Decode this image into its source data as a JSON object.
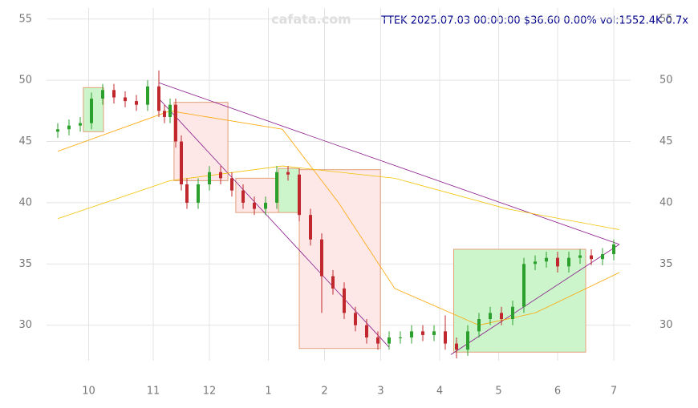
{
  "chart_data": {
    "type": "candlestick",
    "title": "TTEK 2025.07.03 00:00:00 $36.60 0.00% vol:1552.4K 0.7x",
    "watermark": "cafata.com",
    "xlim": [
      -4,
      204
    ],
    "xticks": [
      {
        "value": 11,
        "label": "10"
      },
      {
        "value": 34,
        "label": "11"
      },
      {
        "value": 54,
        "label": "12"
      },
      {
        "value": 75,
        "label": "1"
      },
      {
        "value": 95,
        "label": "2"
      },
      {
        "value": 115,
        "label": "3"
      },
      {
        "value": 136,
        "label": "4"
      },
      {
        "value": 157,
        "label": "5"
      },
      {
        "value": 178,
        "label": "6"
      },
      {
        "value": 198,
        "label": "7"
      }
    ],
    "ylim": [
      27.1,
      55.9
    ],
    "yticks": [
      30,
      35,
      40,
      45,
      50,
      55
    ],
    "grid": true,
    "up_color": "#2ca02c",
    "down_color": "#c0282d",
    "x": [
      0,
      4,
      8,
      12,
      16,
      20,
      24,
      28,
      32,
      36,
      38,
      40,
      42,
      44,
      46,
      50,
      54,
      58,
      62,
      66,
      70,
      74,
      78,
      82,
      86,
      90,
      94,
      98,
      102,
      106,
      110,
      114,
      118,
      122,
      126,
      130,
      134,
      138,
      142,
      146,
      150,
      154,
      158,
      162,
      166,
      170,
      174,
      178,
      182,
      186,
      190,
      194,
      198
    ],
    "open": [
      45.8,
      46,
      46.3,
      46.5,
      48.5,
      49.2,
      48.6,
      48.3,
      48,
      49.5,
      47.5,
      47,
      48,
      45,
      41.5,
      40,
      41.5,
      42.5,
      42,
      41,
      40,
      39.5,
      40,
      42.5,
      42.3,
      39,
      37,
      34,
      33,
      31,
      30,
      29,
      28.5,
      29,
      29,
      29.5,
      29.2,
      29.5,
      28.5,
      28,
      29.5,
      30.5,
      31,
      30.5,
      31.5,
      35,
      35.2,
      35.5,
      34.8,
      35.5,
      35.7,
      35.4,
      35.8
    ],
    "high": [
      46.5,
      46.8,
      47,
      49,
      49.7,
      49.7,
      49.1,
      48.8,
      50,
      50.8,
      48,
      48.5,
      48.5,
      45.5,
      42,
      42,
      43,
      43,
      42.5,
      41.5,
      40.5,
      40.5,
      43,
      43,
      42.8,
      39.5,
      37.5,
      34.5,
      33.5,
      31.5,
      30.5,
      29.5,
      29.5,
      29.5,
      30,
      30,
      30,
      30.8,
      29,
      30,
      31,
      31.5,
      31.5,
      32,
      35.5,
      35.7,
      36,
      36,
      36,
      36.2,
      36.2,
      36.3,
      37
    ],
    "low": [
      45.3,
      45.5,
      45.8,
      46,
      48,
      48.1,
      47.8,
      47.5,
      47.5,
      47,
      46.5,
      46.5,
      44.5,
      41,
      39.5,
      39.5,
      41,
      41.5,
      40.5,
      39.5,
      39,
      39,
      39.5,
      41.8,
      38.5,
      36.5,
      31,
      32.5,
      30.5,
      29.5,
      28.5,
      28,
      28,
      28.5,
      28.5,
      28.7,
      28.7,
      28,
      27.3,
      27.5,
      29,
      30,
      30,
      30,
      31,
      34.5,
      34.7,
      34.3,
      34.3,
      35,
      34.9,
      34.9,
      35.3
    ],
    "close": [
      46,
      46.3,
      46.5,
      48.5,
      49.2,
      48.6,
      48.3,
      48,
      49.5,
      47.5,
      47,
      48,
      45,
      41.5,
      40,
      41.5,
      42.5,
      42,
      41,
      40,
      39.5,
      40,
      42.5,
      42.3,
      39,
      37,
      34,
      33,
      31,
      30,
      29,
      28.5,
      29,
      29,
      29.5,
      29.2,
      29.5,
      28.5,
      28,
      29.5,
      30.5,
      31,
      30.5,
      31.5,
      35,
      35.2,
      35.5,
      34.8,
      35.5,
      35.7,
      35.4,
      35.8,
      36.6
    ],
    "zones": [
      {
        "x0": 9.1,
        "x1": 16.3,
        "y0": 45.8,
        "y1": 49.4,
        "color": "#ccf5cc"
      },
      {
        "x0": 41.4,
        "x1": 60.6,
        "y0": 41.8,
        "y1": 48.2,
        "color": "#fde7e7"
      },
      {
        "x0": 63.4,
        "x1": 78.6,
        "y0": 39.2,
        "y1": 42,
        "color": "#fde7e7"
      },
      {
        "x0": 78.6,
        "x1": 86,
        "y0": 39.2,
        "y1": 42.8,
        "color": "#ccf5cc"
      },
      {
        "x0": 86,
        "x1": 114.9,
        "y0": 28.1,
        "y1": 42.7,
        "color": "#fde7e7"
      },
      {
        "x0": 141,
        "x1": 188,
        "y0": 27.8,
        "y1": 36.2,
        "color": "#ccf5cc"
      }
    ],
    "lines": [
      {
        "color": "#8b1a8b",
        "x": [
          36,
          200
        ],
        "values": [
          49.8,
          36.6
        ]
      },
      {
        "color": "#8b1a8b",
        "x": [
          36,
          118
        ],
        "values": [
          48.5,
          28.2
        ]
      },
      {
        "color": "#8b1a8b",
        "x": [
          140,
          200
        ],
        "values": [
          27.6,
          36.6
        ]
      },
      {
        "color": "#ffa500",
        "x": [
          0,
          40,
          80,
          100,
          120,
          150,
          170,
          200
        ],
        "values": [
          44.2,
          47.5,
          46,
          40,
          33,
          30,
          31,
          34.3
        ]
      },
      {
        "color": "#f2c200",
        "x": [
          0,
          40,
          80,
          120,
          160,
          200
        ],
        "values": [
          38.7,
          41.8,
          43,
          42,
          39.5,
          37.8
        ]
      }
    ]
  }
}
